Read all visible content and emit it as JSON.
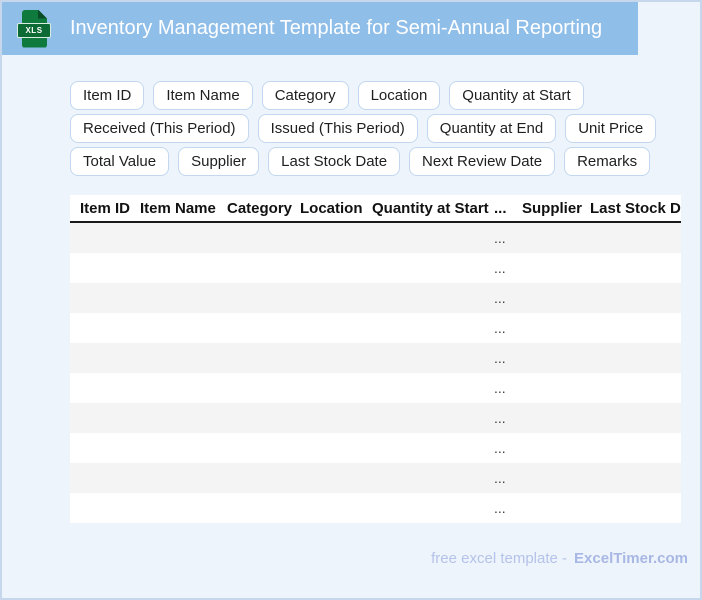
{
  "header": {
    "title": "Inventory Management Template for Semi-Annual Reporting",
    "file_badge": "XLS"
  },
  "chips": {
    "rows": [
      [
        "Item ID",
        "Item Name",
        "Category",
        "Location",
        "Quantity at Start"
      ],
      [
        "Received (This Period)",
        "Issued (This Period)",
        "Quantity at End",
        "Unit Price"
      ],
      [
        "Total Value",
        "Supplier",
        "Last Stock Date",
        "Next Review Date",
        "Remarks"
      ]
    ]
  },
  "table": {
    "columns": [
      "Item ID",
      "Item Name",
      "Category",
      "Location",
      "Quantity at Start",
      "...",
      "Supplier",
      "Last Stock Date"
    ],
    "row_placeholder": "...",
    "rows": [
      "...",
      "...",
      "...",
      "...",
      "...",
      "...",
      "...",
      "...",
      "...",
      "..."
    ]
  },
  "footer": {
    "prefix": "free excel template -",
    "brand": "ExcelTimer.com"
  }
}
